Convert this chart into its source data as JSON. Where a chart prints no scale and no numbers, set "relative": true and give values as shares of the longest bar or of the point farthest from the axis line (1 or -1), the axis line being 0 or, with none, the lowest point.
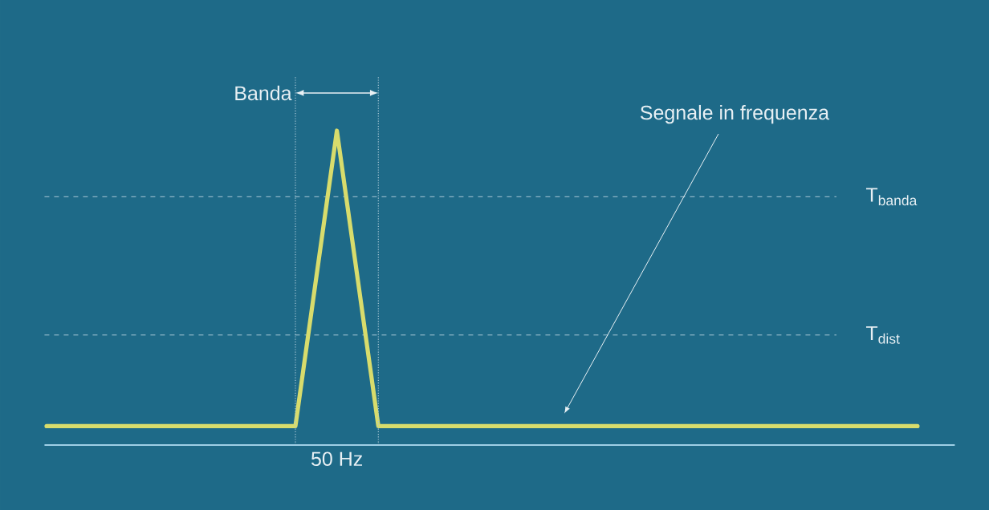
{
  "chart_data": {
    "type": "line",
    "relative": true,
    "categories": [
      null,
      null,
      null,
      null,
      null,
      null,
      null,
      null,
      null,
      null,
      null,
      null,
      null,
      null,
      null,
      null,
      null,
      null,
      null,
      null,
      null,
      null
    ],
    "values": [
      0.06,
      0.06,
      0.06,
      0.06,
      0.06,
      0.06,
      0.06,
      1,
      0.06,
      0.06,
      0.06,
      0.06,
      0.06,
      0.06,
      0.06,
      0.06,
      0.06,
      0.06,
      0.06,
      0.06,
      0.06,
      0.06
    ],
    "color": "#d8dc6c",
    "marker": "none",
    "line_style": "solid",
    "ref_lines": [
      {
        "axis": "y",
        "value": 0.79,
        "label": "T$_{banda}$",
        "line_style": "dashed"
      },
      {
        "axis": "y",
        "value": 0.35,
        "label": "T$_{dist}$",
        "line_style": "dashed"
      }
    ],
    "annotations": [
      "Banda",
      "Segnale in frequenza",
      "50 Hz"
    ]
  }
}
